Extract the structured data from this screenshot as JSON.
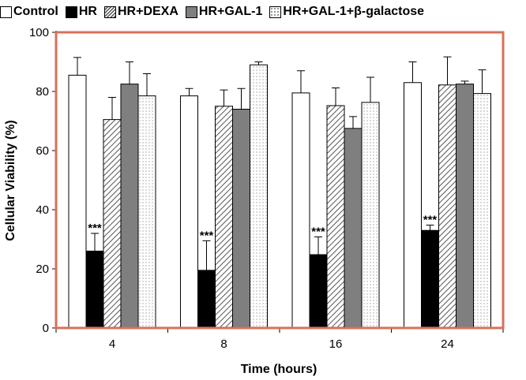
{
  "chart_data": {
    "type": "bar",
    "title": "",
    "xlabel": "Time (hours)",
    "ylabel": "Cellular Viability (%)",
    "categories": [
      "4",
      "8",
      "16",
      "24"
    ],
    "ylim": [
      0,
      100
    ],
    "yticks": [
      "0",
      "20",
      "40",
      "60",
      "80",
      "100"
    ],
    "legend_position": "top",
    "frame_color": "#d9705a",
    "series": [
      {
        "name": "Control",
        "fill": "white",
        "values": [
          85.5,
          78.5,
          79.5,
          83.0
        ],
        "errors": [
          6.0,
          2.5,
          7.5,
          7.0
        ]
      },
      {
        "name": "HR",
        "fill": "black",
        "values": [
          26.0,
          19.5,
          24.8,
          33.0
        ],
        "errors": [
          6.0,
          10.0,
          6.0,
          1.8
        ]
      },
      {
        "name": "HR+DEXA",
        "fill": "hatch",
        "values": [
          70.5,
          75.0,
          75.2,
          82.2
        ],
        "errors": [
          7.5,
          5.5,
          6.0,
          9.5
        ]
      },
      {
        "name": "HR+GAL-1",
        "fill": "gray",
        "values": [
          82.5,
          74.0,
          67.5,
          82.5
        ],
        "errors": [
          7.5,
          7.0,
          4.0,
          1.0
        ]
      },
      {
        "name": "HR+GAL-1+β-galactose",
        "fill": "dots",
        "values": [
          78.5,
          89.0,
          76.3,
          79.3
        ],
        "errors": [
          7.5,
          1.0,
          8.5,
          8.0
        ]
      }
    ],
    "annotations": [
      {
        "category": "4",
        "series": "HR",
        "text": "***"
      },
      {
        "category": "8",
        "series": "HR",
        "text": "***"
      },
      {
        "category": "16",
        "series": "HR",
        "text": "***"
      },
      {
        "category": "24",
        "series": "HR",
        "text": "***"
      }
    ]
  }
}
